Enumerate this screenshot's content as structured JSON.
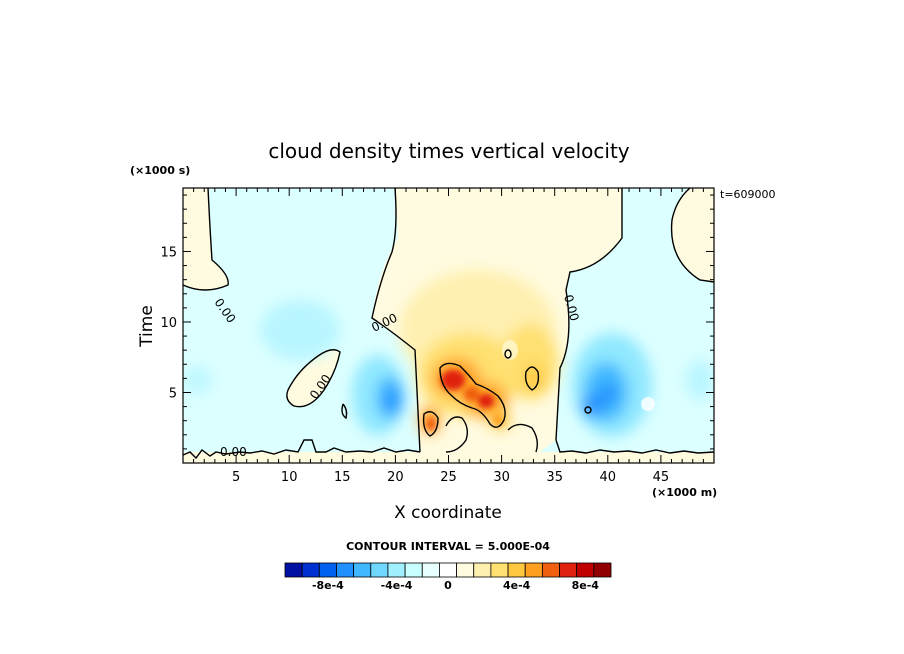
{
  "chart_data": {
    "type": "heatmap",
    "title": "cloud density times vertical velocity",
    "xlabel": "X coordinate",
    "ylabel": "Time",
    "x_unit": "(×1000 m)",
    "y_unit": "(×1000 s)",
    "time_stamp": "t=609000",
    "xlim": [
      0,
      50
    ],
    "ylim": [
      0,
      19.5
    ],
    "x_ticks": [
      "5",
      "10",
      "15",
      "20",
      "25",
      "30",
      "35",
      "40",
      "45"
    ],
    "y_ticks": [
      "5",
      "10",
      "15"
    ],
    "contour_label": "0.00",
    "contour_interval_text": "CONTOUR INTERVAL = 5.000E-04",
    "colorbar": {
      "labels": [
        "-8e-4",
        "-4e-4",
        "0",
        "4e-4",
        "8e-4"
      ],
      "colors": [
        "#0010a0",
        "#0030d0",
        "#0060f0",
        "#2090ff",
        "#40b8ff",
        "#70d8ff",
        "#a0f0ff",
        "#c8ffff",
        "#e8ffff",
        "#ffffff",
        "#fffbe0",
        "#fff0b0",
        "#ffe070",
        "#ffc840",
        "#ffa020",
        "#f06010",
        "#e02010",
        "#c00000",
        "#900000"
      ]
    },
    "features": [
      {
        "name": "positive core",
        "x": 25.5,
        "y": 6.0,
        "value": 0.0009
      },
      {
        "name": "positive core",
        "x": 28.0,
        "y": 4.8,
        "value": 0.0008
      },
      {
        "name": "positive core",
        "x": 23.3,
        "y": 3.0,
        "value": 0.0007
      },
      {
        "name": "positive core",
        "x": 32.8,
        "y": 6.0,
        "value": 0.0005
      },
      {
        "name": "negative core",
        "x": 19.5,
        "y": 4.8,
        "value": -0.0005
      },
      {
        "name": "negative core",
        "x": 39.5,
        "y": 5.0,
        "value": -0.0006
      },
      {
        "name": "negative core",
        "x": 10.0,
        "y": 9.5,
        "value": -0.00015
      }
    ]
  }
}
